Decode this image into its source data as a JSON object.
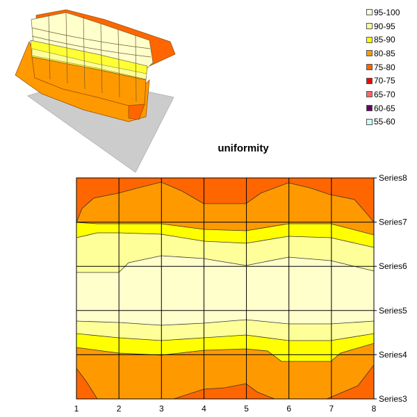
{
  "chart_data": {
    "type": "contour",
    "title": "uniformity",
    "x_categories": [
      "1",
      "2",
      "3",
      "4",
      "5",
      "6",
      "7",
      "8"
    ],
    "series": [
      "Series3",
      "Series4",
      "Series5",
      "Series6",
      "Series7",
      "Series8"
    ],
    "legend": [
      {
        "label": "95-100",
        "color": "#ffffe0"
      },
      {
        "label": "90-95",
        "color": "#ffff99"
      },
      {
        "label": "85-90",
        "color": "#ffff00"
      },
      {
        "label": "80-85",
        "color": "#ff9900"
      },
      {
        "label": "75-80",
        "color": "#ff6600"
      },
      {
        "label": "70-75",
        "color": "#ff0000"
      },
      {
        "label": "65-70",
        "color": "#ff6666"
      },
      {
        "label": "60-65",
        "color": "#660066"
      },
      {
        "label": "55-60",
        "color": "#ccffff"
      }
    ],
    "legend_position": "top-right",
    "grid": true
  }
}
